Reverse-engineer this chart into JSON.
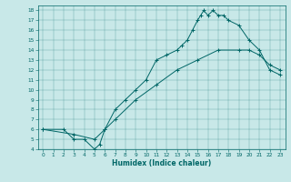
{
  "xlabel": "Humidex (Indice chaleur)",
  "background_color": "#c8e8e8",
  "line_color": "#006666",
  "xlim": [
    -0.5,
    23.5
  ],
  "ylim": [
    4,
    18.5
  ],
  "xticks": [
    0,
    1,
    2,
    3,
    4,
    5,
    6,
    7,
    8,
    9,
    10,
    11,
    12,
    13,
    14,
    15,
    16,
    17,
    18,
    19,
    20,
    21,
    22,
    23
  ],
  "yticks": [
    4,
    5,
    6,
    7,
    8,
    9,
    10,
    11,
    12,
    13,
    14,
    15,
    16,
    17,
    18
  ],
  "curve1_x": [
    0,
    2,
    3,
    4,
    5,
    5.5,
    6,
    7,
    8,
    9,
    10,
    11,
    12,
    13,
    13.5,
    14,
    14.5,
    15,
    15.3,
    15.6,
    16,
    16.5,
    17,
    17.5,
    18,
    19,
    20,
    21,
    22,
    23
  ],
  "curve1_y": [
    6,
    6,
    5,
    5,
    4,
    4.5,
    6,
    8,
    9,
    10,
    11,
    13,
    13.5,
    14,
    14.5,
    15,
    16,
    17,
    17.5,
    18,
    17.5,
    18,
    17.5,
    17.5,
    17,
    16.5,
    15,
    14,
    12,
    11.5
  ],
  "curve2_x": [
    0,
    3,
    5,
    6,
    7,
    9,
    11,
    13,
    15,
    17,
    19,
    20,
    21,
    22,
    23
  ],
  "curve2_y": [
    6,
    5.5,
    5,
    6,
    7,
    9,
    10.5,
    12,
    13,
    14,
    14,
    14,
    13.5,
    12.5,
    12
  ]
}
